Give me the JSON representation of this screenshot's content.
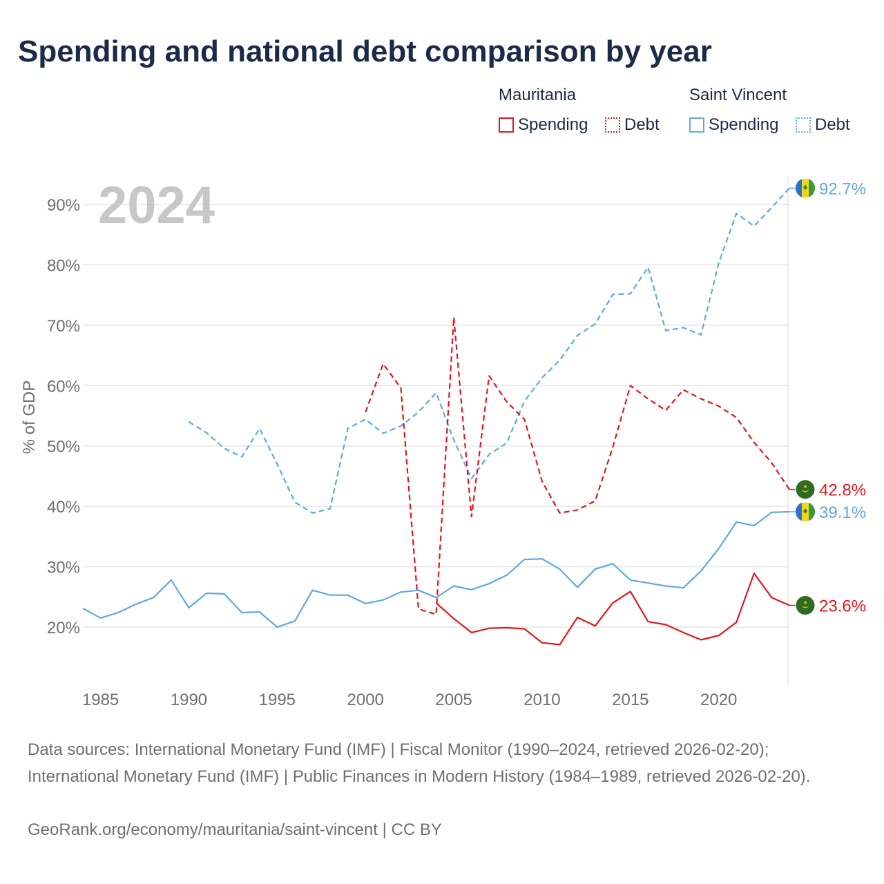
{
  "title": "Spending and national debt comparison by year",
  "legend": {
    "mauritania": {
      "name": "Mauritania",
      "spending": "Spending",
      "debt": "Debt"
    },
    "svg": {
      "name": "Saint Vincent",
      "spending": "Spending",
      "debt": "Debt"
    }
  },
  "colors": {
    "mauritania": "#e8141c",
    "svg": "#5fa8e4",
    "grid": "#e6e6e6",
    "axis_text": "#6f6f6f",
    "year_watermark": "#c7c7c7",
    "title": "#1b2a48"
  },
  "chart_data": {
    "type": "line",
    "year_watermark": "2024",
    "ylabel": "% of GDP",
    "ylim": [
      12,
      95
    ],
    "xlim": [
      1984,
      2024
    ],
    "yticks": [
      20,
      30,
      40,
      50,
      60,
      70,
      80,
      90
    ],
    "ytick_labels": [
      "20%",
      "30%",
      "40%",
      "50%",
      "60%",
      "70%",
      "80%",
      "90%"
    ],
    "xticks": [
      1985,
      1990,
      1995,
      2000,
      2005,
      2010,
      2015,
      2020
    ],
    "xtick_labels": [
      "1985",
      "1990",
      "1995",
      "2000",
      "2005",
      "2010",
      "2015",
      "2020"
    ],
    "series": [
      {
        "name": "Saint Vincent Debt",
        "country": "svg",
        "style": "dashed",
        "end_label": "92.7%",
        "x": [
          1990,
          1991,
          1992,
          1993,
          1994,
          1995,
          1996,
          1997,
          1998,
          1999,
          2000,
          2001,
          2002,
          2003,
          2004,
          2005,
          2006,
          2007,
          2008,
          2009,
          2010,
          2011,
          2012,
          2013,
          2014,
          2015,
          2016,
          2017,
          2018,
          2019,
          2020,
          2021,
          2022,
          2023,
          2024
        ],
        "values": [
          54.0,
          52.2,
          49.6,
          48.2,
          52.9,
          47.0,
          40.7,
          38.9,
          39.6,
          52.9,
          54.4,
          52.1,
          53.3,
          55.6,
          58.8,
          51.0,
          44.6,
          48.6,
          50.5,
          57.4,
          61.3,
          64.2,
          68.3,
          70.2,
          75.1,
          75.2,
          79.6,
          69.1,
          69.6,
          68.4,
          80.3,
          88.5,
          86.4,
          89.5,
          92.7
        ]
      },
      {
        "name": "Mauritania Debt",
        "country": "mauritania",
        "style": "dashed",
        "end_label": "42.8%",
        "x": [
          2000,
          2001,
          2002,
          2003,
          2004,
          2005,
          2006,
          2007,
          2008,
          2009,
          2010,
          2011,
          2012,
          2013,
          2014,
          2015,
          2016,
          2017,
          2018,
          2019,
          2020,
          2021,
          2022,
          2023,
          2024
        ],
        "values": [
          55.6,
          63.6,
          59.6,
          23.0,
          22.1,
          71.3,
          38.3,
          61.6,
          57.3,
          54.4,
          44.1,
          38.9,
          39.4,
          40.9,
          49.8,
          60.0,
          57.8,
          55.9,
          59.3,
          57.8,
          56.6,
          54.7,
          50.6,
          47.2,
          42.8
        ]
      },
      {
        "name": "Saint Vincent Spending",
        "country": "svg",
        "style": "solid",
        "end_label": "39.1%",
        "x": [
          1984,
          1985,
          1986,
          1987,
          1988,
          1989,
          1990,
          1991,
          1992,
          1993,
          1994,
          1995,
          1996,
          1997,
          1998,
          1999,
          2000,
          2001,
          2002,
          2003,
          2004,
          2005,
          2006,
          2007,
          2008,
          2009,
          2010,
          2011,
          2012,
          2013,
          2014,
          2015,
          2016,
          2017,
          2018,
          2019,
          2020,
          2021,
          2022,
          2023,
          2024
        ],
        "values": [
          23.1,
          21.5,
          22.4,
          23.8,
          24.9,
          27.8,
          23.2,
          25.6,
          25.5,
          22.4,
          22.5,
          20.0,
          21.0,
          26.1,
          25.3,
          25.3,
          23.9,
          24.5,
          25.8,
          26.1,
          24.9,
          26.8,
          26.2,
          27.2,
          28.6,
          31.2,
          31.3,
          29.6,
          26.6,
          29.6,
          30.5,
          27.8,
          27.3,
          26.8,
          26.5,
          29.3,
          33.0,
          37.4,
          36.8,
          39.0,
          39.1
        ]
      },
      {
        "name": "Mauritania Spending",
        "country": "mauritania",
        "style": "solid",
        "end_label": "23.6%",
        "x": [
          2004,
          2005,
          2006,
          2007,
          2008,
          2009,
          2010,
          2011,
          2012,
          2013,
          2014,
          2015,
          2016,
          2017,
          2018,
          2019,
          2020,
          2021,
          2022,
          2023,
          2024
        ],
        "values": [
          24.0,
          21.4,
          19.1,
          19.8,
          19.9,
          19.7,
          17.4,
          17.1,
          21.6,
          20.2,
          24.0,
          25.9,
          20.9,
          20.4,
          19.1,
          17.9,
          18.6,
          20.8,
          28.9,
          24.9,
          23.6
        ]
      }
    ]
  },
  "footer": {
    "sources": "Data sources: International Monetary Fund (IMF) | Fiscal Monitor (1990–2024, retrieved 2026-02-20); International Monetary Fund (IMF) | Public Finances in Modern History (1984–1989, retrieved 2026-02-20).",
    "link": "GeoRank.org/economy/mauritania/saint-vincent | CC BY"
  }
}
